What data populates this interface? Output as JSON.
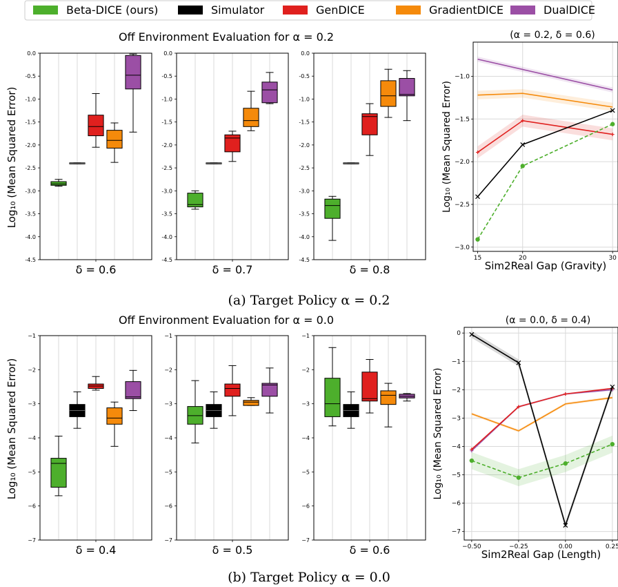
{
  "legend": [
    {
      "label": "Beta-DICE (ours)",
      "color": "#4daf2c"
    },
    {
      "label": "Simulator",
      "color": "#000000"
    },
    {
      "label": "GenDICE",
      "color": "#e0201e"
    },
    {
      "label": "GradientDICE",
      "color": "#f58a0b"
    },
    {
      "label": "DualDICE",
      "color": "#9b4fa5"
    }
  ],
  "colors": {
    "beta": "#4daf2c",
    "simulator": "#000000",
    "gendice": "#e0201e",
    "gradientdice": "#f58a0b",
    "dualdice": "#9b4fa5",
    "gridline": "#d9d9d9"
  },
  "panel_a": {
    "title": "Off Environment Evaluation for α = 0.2",
    "caption": "(a) Target Policy α = 0.2",
    "ylabel": "Log₁₀ (Mean Squared Error)"
  },
  "panel_b": {
    "title": "Off Environment Evaluation for α = 0.0",
    "caption": "(b) Target Policy α = 0.0",
    "ylabel": "Log₁₀ (Mean Squared Error)"
  },
  "chart_data": [
    {
      "type": "box",
      "panel": "a",
      "xlabel": "δ = 0.6",
      "ylim": [
        -4.5,
        0.0
      ],
      "yticks": [
        "0.0",
        "-0.5",
        "-1.0",
        "-1.5",
        "-2.0",
        "-2.5",
        "-3.0",
        "-3.5",
        "-4.0",
        "-4.5"
      ],
      "boxes": [
        {
          "series": "Beta-DICE (ours)",
          "min": -2.9,
          "q1": -2.88,
          "median": -2.85,
          "q3": -2.8,
          "max": -2.75
        },
        {
          "series": "Simulator",
          "min": -2.41,
          "q1": -2.41,
          "median": -2.4,
          "q3": -2.39,
          "max": -2.39
        },
        {
          "series": "GenDICE",
          "min": -2.05,
          "q1": -1.8,
          "median": -1.6,
          "q3": -1.35,
          "max": -0.88
        },
        {
          "series": "GradientDICE",
          "min": -2.38,
          "q1": -2.07,
          "median": -1.9,
          "q3": -1.68,
          "max": -1.52
        },
        {
          "series": "DualDICE",
          "min": -1.72,
          "q1": -0.78,
          "median": -0.48,
          "q3": -0.05,
          "max": -0.02
        }
      ]
    },
    {
      "type": "box",
      "panel": "a",
      "xlabel": "δ = 0.7",
      "ylim": [
        -4.5,
        0.0
      ],
      "yticks": [
        "0.0",
        "-0.5",
        "-1.0",
        "-1.5",
        "-2.0",
        "-2.5",
        "-3.0",
        "-3.5",
        "-4.0",
        "-4.5"
      ],
      "boxes": [
        {
          "series": "Beta-DICE (ours)",
          "min": -3.4,
          "q1": -3.35,
          "median": -3.3,
          "q3": -3.05,
          "max": -3.0
        },
        {
          "series": "Simulator",
          "min": -2.41,
          "q1": -2.41,
          "median": -2.4,
          "q3": -2.39,
          "max": -2.39
        },
        {
          "series": "GenDICE",
          "min": -2.36,
          "q1": -2.15,
          "median": -1.85,
          "q3": -1.78,
          "max": -1.7
        },
        {
          "series": "GradientDICE",
          "min": -1.69,
          "q1": -1.6,
          "median": -1.47,
          "q3": -1.2,
          "max": -0.83
        },
        {
          "series": "DualDICE",
          "min": -1.1,
          "q1": -1.08,
          "median": -0.8,
          "q3": -0.63,
          "max": -0.42
        }
      ]
    },
    {
      "type": "box",
      "panel": "a",
      "xlabel": "δ = 0.8",
      "ylim": [
        -4.5,
        0.0
      ],
      "yticks": [
        "0.0",
        "-0.5",
        "-1.0",
        "-1.5",
        "-2.0",
        "-2.5",
        "-3.0",
        "-3.5",
        "-4.0",
        "-4.5"
      ],
      "boxes": [
        {
          "series": "Beta-DICE (ours)",
          "min": -4.08,
          "q1": -3.6,
          "median": -3.32,
          "q3": -3.18,
          "max": -3.12
        },
        {
          "series": "Simulator",
          "min": -2.41,
          "q1": -2.41,
          "median": -2.4,
          "q3": -2.39,
          "max": -2.39
        },
        {
          "series": "GenDICE",
          "min": -2.23,
          "q1": -1.78,
          "median": -1.38,
          "q3": -1.32,
          "max": -1.1
        },
        {
          "series": "GradientDICE",
          "min": -1.4,
          "q1": -1.16,
          "median": -0.93,
          "q3": -0.6,
          "max": -0.35
        },
        {
          "series": "DualDICE",
          "min": -1.47,
          "q1": -0.93,
          "median": -0.9,
          "q3": -0.55,
          "max": -0.38
        }
      ]
    },
    {
      "type": "line",
      "panel": "a",
      "title": "(α = 0.2, δ = 0.6)",
      "xlabel": "Sim2Real Gap (Gravity)",
      "ylabel": "Log₁₀ (Mean Squared Error)",
      "x": [
        15,
        20,
        30
      ],
      "xticks": [
        "15",
        "20",
        "30"
      ],
      "xlim": [
        14.5,
        30.6
      ],
      "ylim": [
        -3.05,
        -0.6
      ],
      "yticks": [
        -3.0,
        -2.5,
        -2.0,
        -1.5,
        -1.0
      ],
      "ytick_labels": [
        "−3.0",
        "−2.5",
        "−2.0",
        "−1.5",
        "−1.0"
      ],
      "series": [
        {
          "name": "DualDICE",
          "values": [
            -0.8,
            -0.92,
            -1.16
          ],
          "marker": "none",
          "dashed": false,
          "band": 0.03
        },
        {
          "name": "GradientDICE",
          "values": [
            -1.22,
            -1.2,
            -1.36
          ],
          "marker": "none",
          "dashed": false,
          "band": 0.05
        },
        {
          "name": "GenDICE",
          "values": [
            -1.89,
            -1.52,
            -1.68
          ],
          "marker": "plus",
          "dashed": false,
          "band": 0.07
        },
        {
          "name": "Simulator",
          "values": [
            -2.41,
            -1.8,
            -1.4
          ],
          "marker": "x",
          "dashed": false,
          "band": 0.0
        },
        {
          "name": "Beta-DICE (ours)",
          "values": [
            -2.91,
            -2.05,
            -1.56
          ],
          "marker": "dot",
          "dashed": true,
          "band": 0.0
        }
      ]
    },
    {
      "type": "box",
      "panel": "b",
      "xlabel": "δ = 0.4",
      "ylim": [
        -7,
        -1
      ],
      "yticks": [
        "−1",
        "−2",
        "−3",
        "−4",
        "−5",
        "−6",
        "−7"
      ],
      "boxes": [
        {
          "series": "Beta-DICE (ours)",
          "min": -5.7,
          "q1": -5.45,
          "median": -4.75,
          "q3": -4.6,
          "max": -3.95
        },
        {
          "series": "Simulator",
          "min": -3.72,
          "q1": -3.38,
          "median": -3.2,
          "q3": -3.02,
          "max": -2.65
        },
        {
          "series": "GenDICE",
          "min": -2.6,
          "q1": -2.55,
          "median": -2.48,
          "q3": -2.42,
          "max": -2.2
        },
        {
          "series": "GradientDICE",
          "min": -4.25,
          "q1": -3.6,
          "median": -3.42,
          "q3": -3.12,
          "max": -2.95
        },
        {
          "series": "DualDICE",
          "min": -3.2,
          "q1": -2.85,
          "median": -2.8,
          "q3": -2.35,
          "max": -2.02
        }
      ]
    },
    {
      "type": "box",
      "panel": "b",
      "xlabel": "δ = 0.5",
      "ylim": [
        -7,
        -1
      ],
      "yticks": [
        "−1",
        "−2",
        "−3",
        "−4",
        "−5",
        "−6",
        "−7"
      ],
      "boxes": [
        {
          "series": "Beta-DICE (ours)",
          "min": -4.15,
          "q1": -3.6,
          "median": -3.35,
          "q3": -3.08,
          "max": -2.32
        },
        {
          "series": "Simulator",
          "min": -3.72,
          "q1": -3.38,
          "median": -3.2,
          "q3": -3.02,
          "max": -2.65
        },
        {
          "series": "GenDICE",
          "min": -3.35,
          "q1": -2.78,
          "median": -2.55,
          "q3": -2.42,
          "max": -1.88
        },
        {
          "series": "GradientDICE",
          "min": -3.05,
          "q1": -3.05,
          "median": -2.95,
          "q3": -2.9,
          "max": -2.82
        },
        {
          "series": "DualDICE",
          "min": -3.27,
          "q1": -2.78,
          "median": -2.45,
          "q3": -2.4,
          "max": -1.95
        }
      ]
    },
    {
      "type": "box",
      "panel": "b",
      "xlabel": "δ = 0.6",
      "ylim": [
        -7,
        -1
      ],
      "yticks": [
        "−1",
        "−2",
        "−3",
        "−4",
        "−5",
        "−6",
        "−7"
      ],
      "boxes": [
        {
          "series": "Beta-DICE (ours)",
          "min": -3.65,
          "q1": -3.38,
          "median": -3.0,
          "q3": -2.25,
          "max": -1.35
        },
        {
          "series": "Simulator",
          "min": -3.72,
          "q1": -3.38,
          "median": -3.2,
          "q3": -3.02,
          "max": -2.65
        },
        {
          "series": "GenDICE",
          "min": -3.27,
          "q1": -2.92,
          "median": -2.85,
          "q3": -2.07,
          "max": -1.7
        },
        {
          "series": "GradientDICE",
          "min": -3.68,
          "q1": -3.02,
          "median": -2.75,
          "q3": -2.62,
          "max": -2.4
        },
        {
          "series": "DualDICE",
          "min": -2.92,
          "q1": -2.83,
          "median": -2.78,
          "q3": -2.72,
          "max": -2.7
        }
      ]
    },
    {
      "type": "line",
      "panel": "b",
      "title": "(α = 0.0, δ = 0.4)",
      "xlabel": "Sim2Real Gap (Length)",
      "ylabel": "Log₁₀ (Mean Squared Error)",
      "x": [
        -0.5,
        -0.25,
        0.0,
        0.25
      ],
      "xticks": [
        "−0.50",
        "−0.25",
        "0.00",
        "0.25"
      ],
      "xlim": [
        -0.54,
        0.28
      ],
      "ylim": [
        -7.3,
        0.2
      ],
      "yticks": [
        0,
        -1,
        -2,
        -3,
        -4,
        -5,
        -6,
        -7
      ],
      "ytick_labels": [
        "0",
        "−1",
        "−2",
        "−3",
        "−4",
        "−5",
        "−6",
        "−7"
      ],
      "series": [
        {
          "name": "GradientDICE",
          "values": [
            -2.85,
            -3.45,
            -2.5,
            -2.28
          ],
          "marker": "none",
          "dashed": false,
          "band": 0.05
        },
        {
          "name": "DualDICE",
          "values": [
            -4.15,
            -2.6,
            -2.15,
            -2.0
          ],
          "marker": "plus",
          "dashed": false,
          "band": 0.04
        },
        {
          "name": "GenDICE",
          "values": [
            -4.1,
            -2.6,
            -2.15,
            -1.95
          ],
          "marker": "plus",
          "dashed": false,
          "band": 0.0
        },
        {
          "name": "Simulator",
          "values": [
            -0.05,
            -1.05,
            -6.78,
            -1.9
          ],
          "marker": "x",
          "dashed": false,
          "band": 0.12
        },
        {
          "name": "Beta-DICE (ours)",
          "values": [
            -4.5,
            -5.1,
            -4.6,
            -3.92
          ],
          "marker": "dot",
          "dashed": true,
          "band": 0.3
        }
      ]
    }
  ]
}
